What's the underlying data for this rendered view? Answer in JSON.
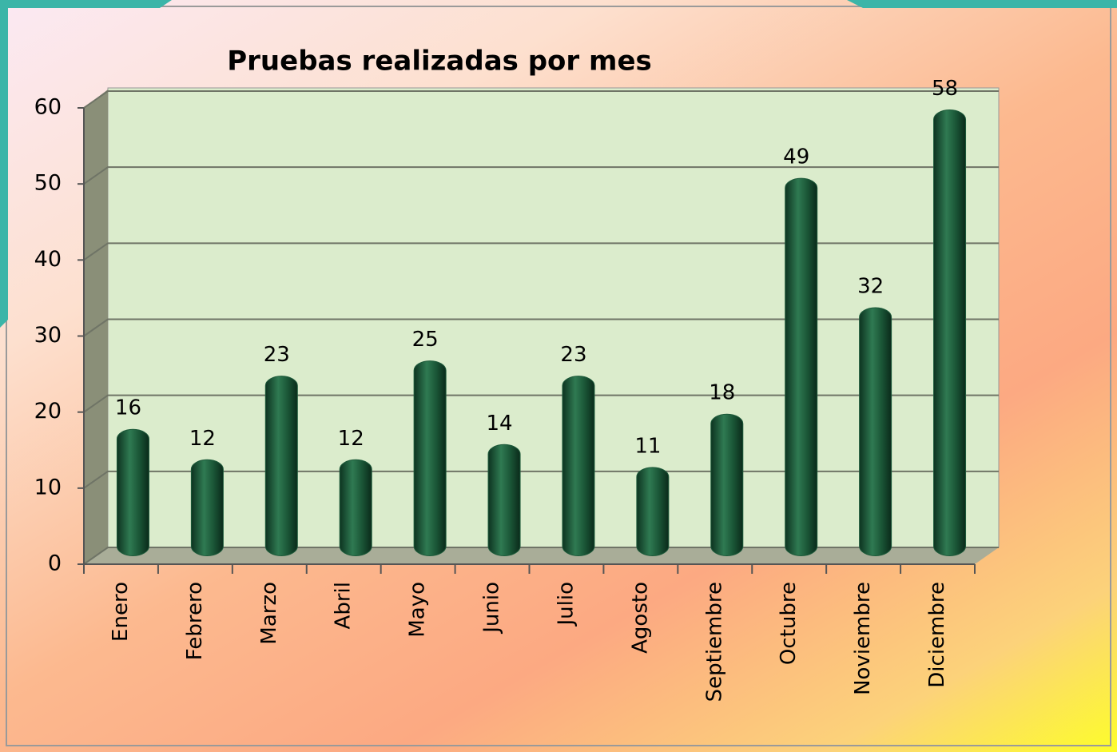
{
  "chart_data": {
    "type": "bar",
    "title": "Pruebas realizadas por mes",
    "categories": [
      "Enero",
      "Febrero",
      "Marzo",
      "Abril",
      "Mayo",
      "Junio",
      "Julio",
      "Agosto",
      "Septiembre",
      "Octubre",
      "Noviembre",
      "Diciembre"
    ],
    "values": [
      16,
      12,
      23,
      12,
      25,
      14,
      23,
      11,
      18,
      49,
      32,
      58
    ],
    "color": "#1d5a3a",
    "ylim": [
      0,
      60
    ],
    "yticks": [
      0,
      10,
      20,
      30,
      40,
      50,
      60
    ],
    "grid": true
  }
}
